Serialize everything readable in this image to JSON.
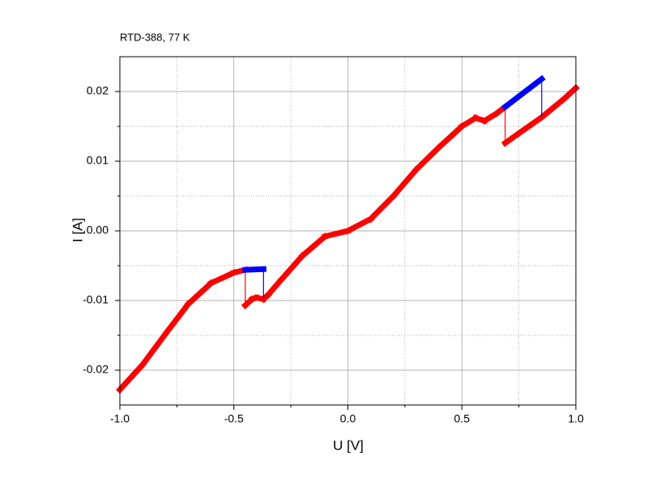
{
  "chart_data": {
    "type": "line",
    "title": "RTD-388,   77 K",
    "x_label": "U [V]",
    "y_label": "I [A]",
    "xlim": [
      -1,
      1
    ],
    "ylim": [
      -0.025,
      0.025
    ],
    "xticks": [
      {
        "value": -1,
        "label": "-1.0"
      },
      -0.5,
      {
        "value": 0,
        "label": "0.0"
      },
      0.5,
      {
        "value": 1,
        "label": "1.0"
      }
    ],
    "yticks": [
      -0.02,
      -0.01,
      {
        "value": 0,
        "label": "0.00"
      },
      0.01,
      0.02
    ],
    "xminorticks": [
      -0.75,
      -0.25,
      0.25,
      0.75
    ],
    "yminorticks": [
      -0.015,
      -0.005,
      0.005,
      0.015
    ],
    "grid": true,
    "series": [
      {
        "color": "#ff0000",
        "x": [
          -1.0,
          -0.9,
          -0.8,
          -0.7,
          -0.6,
          -0.5,
          -0.45,
          -0.45,
          -0.42,
          -0.4,
          -0.37,
          -0.35,
          -0.3,
          -0.2,
          -0.1,
          0.0,
          0.1,
          0.2,
          0.3,
          0.4,
          0.5,
          0.56,
          0.6,
          0.65,
          0.69,
          0.69,
          0.75,
          0.85,
          0.95,
          1.0
        ],
        "values": [
          -0.0228,
          -0.0192,
          -0.0148,
          -0.0105,
          -0.0075,
          -0.006,
          -0.0056,
          -0.0107,
          -0.0098,
          -0.0096,
          -0.0098,
          -0.0092,
          -0.0073,
          -0.0036,
          -0.0008,
          0.0,
          0.0017,
          0.005,
          0.0088,
          0.012,
          0.015,
          0.0162,
          0.0158,
          0.0168,
          0.0178,
          0.0126,
          0.014,
          0.0163,
          0.019,
          0.0205
        ]
      },
      {
        "color": "#0000ff",
        "x": [
          -0.37,
          -0.37,
          -0.45,
          null,
          0.85,
          0.85,
          0.69
        ],
        "values": [
          -0.0098,
          -0.0055,
          -0.0056,
          null,
          0.0163,
          0.0218,
          0.0178
        ]
      }
    ]
  }
}
